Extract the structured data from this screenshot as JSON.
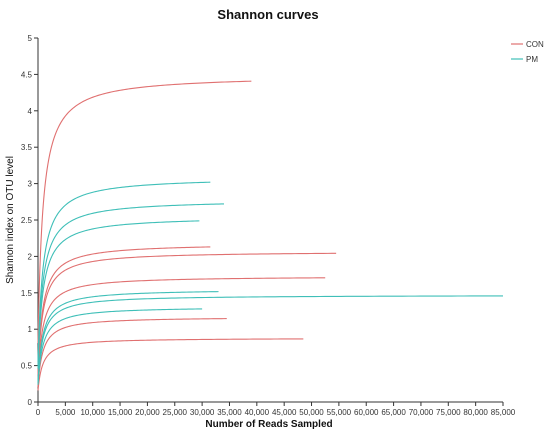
{
  "chart_data": {
    "type": "line",
    "title": "Shannon curves",
    "xlabel": "Number of Reads Sampled",
    "ylabel": "Shannon index on OTU level",
    "xlim": [
      0,
      85000
    ],
    "ylim": [
      0,
      5
    ],
    "x_ticks": [
      "0",
      "5,000",
      "10,000",
      "15,000",
      "20,000",
      "25,000",
      "30,000",
      "35,000",
      "40,000",
      "45,000",
      "50,000",
      "55,000",
      "60,000",
      "65,000",
      "70,000",
      "75,000",
      "80,000",
      "85,000"
    ],
    "y_ticks": [
      "0",
      "0.5",
      "1",
      "1.5",
      "2",
      "2.5",
      "3",
      "3.5",
      "4",
      "4.5",
      "5"
    ],
    "grid": false,
    "legend_position": "top-right",
    "legend": [
      {
        "name": "CON",
        "color": "#e07070"
      },
      {
        "name": "PM",
        "color": "#3fbfb8"
      }
    ],
    "series": [
      {
        "group": "CON",
        "end_x": 39000,
        "plateau": 4.49
      },
      {
        "group": "CON",
        "end_x": 31500,
        "plateau": 2.18
      },
      {
        "group": "CON",
        "end_x": 54500,
        "plateau": 2.07
      },
      {
        "group": "CON",
        "end_x": 52500,
        "plateau": 1.73
      },
      {
        "group": "CON",
        "end_x": 34500,
        "plateau": 1.17
      },
      {
        "group": "CON",
        "end_x": 48500,
        "plateau": 0.88
      },
      {
        "group": "PM",
        "end_x": 31500,
        "plateau": 3.09
      },
      {
        "group": "PM",
        "end_x": 34000,
        "plateau": 2.78
      },
      {
        "group": "PM",
        "end_x": 29500,
        "plateau": 2.55
      },
      {
        "group": "PM",
        "end_x": 33000,
        "plateau": 1.55
      },
      {
        "group": "PM",
        "end_x": 85000,
        "plateau": 1.47
      },
      {
        "group": "PM",
        "end_x": 30000,
        "plateau": 1.31
      }
    ]
  }
}
